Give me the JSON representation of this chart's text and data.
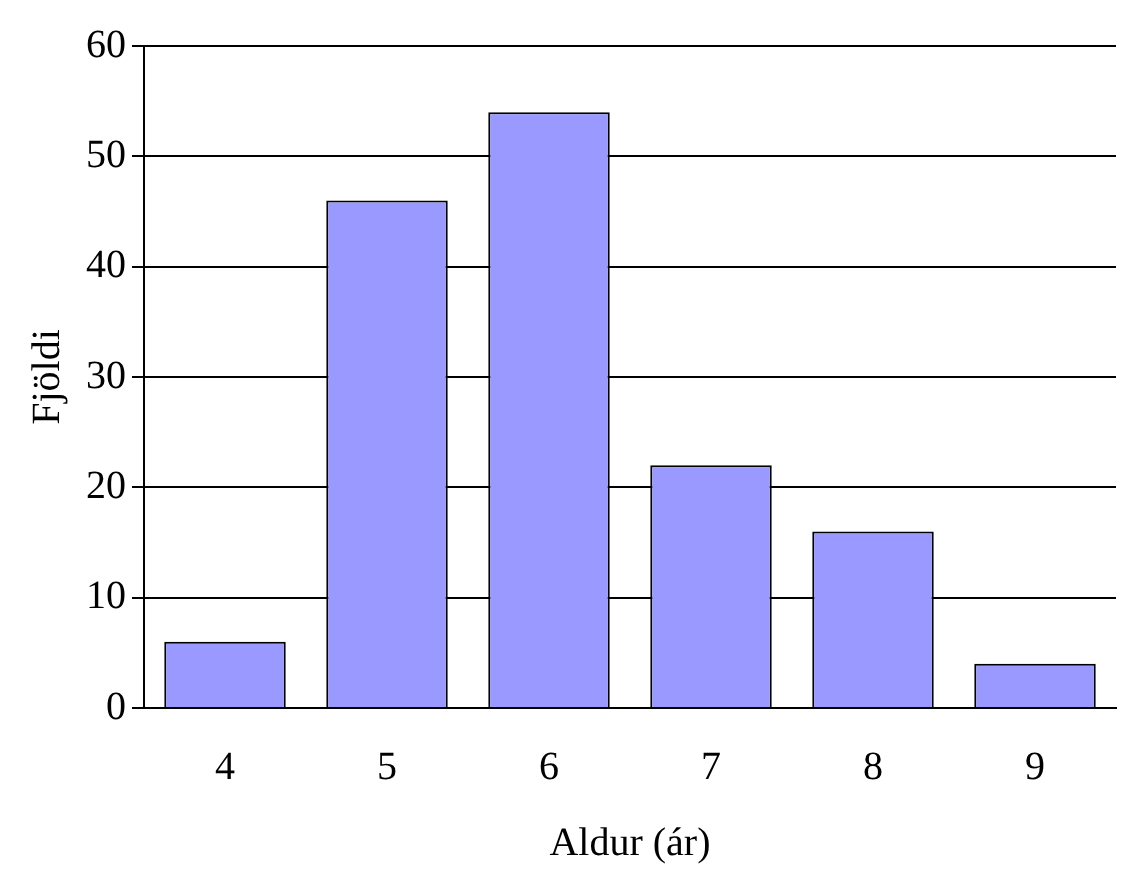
{
  "chart_data": {
    "type": "bar",
    "xlabel": "Aldur (ár)",
    "ylabel": "Fjöldi",
    "categories": [
      "4",
      "5",
      "6",
      "7",
      "8",
      "9"
    ],
    "values": [
      6,
      46,
      54,
      22,
      16,
      4
    ],
    "color": "#9999ff",
    "ylim": [
      0,
      60
    ],
    "yticks": [
      0,
      10,
      20,
      30,
      40,
      50,
      60
    ],
    "grid": "y",
    "legend": false
  }
}
